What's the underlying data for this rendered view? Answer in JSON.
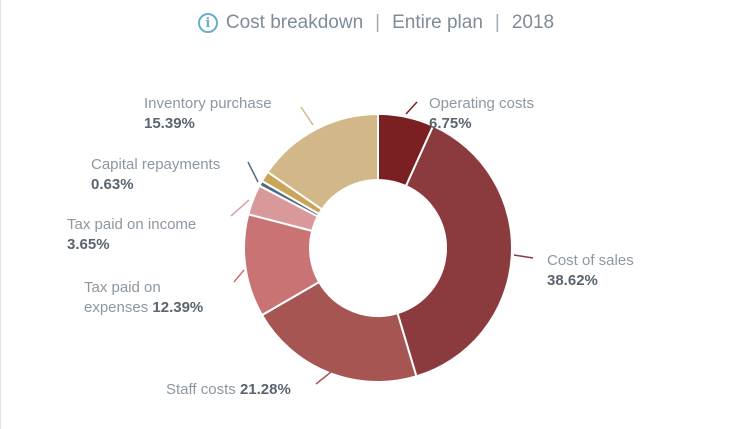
{
  "title": {
    "main": "Cost breakdown",
    "scope": "Entire plan",
    "year": "2018"
  },
  "icons": {
    "info": "info-icon"
  },
  "chart_data": {
    "type": "pie",
    "variant": "donut",
    "title": "Cost breakdown | Entire plan | 2018",
    "slices": [
      {
        "label": "Operating costs",
        "value": 6.75,
        "display": "6.75%",
        "color": "#7a1f22"
      },
      {
        "label": "Cost of sales",
        "value": 38.62,
        "display": "38.62%",
        "color": "#8b3a3d"
      },
      {
        "label": "Staff costs",
        "value": 21.28,
        "display": "21.28%",
        "color": "#a65553"
      },
      {
        "label": "Tax paid on expenses",
        "value": 12.39,
        "display": "12.39%",
        "color": "#c97375"
      },
      {
        "label": "Tax paid on income",
        "value": 3.65,
        "display": "3.65%",
        "color": "#d9999a"
      },
      {
        "label": "Capital repayments",
        "value": 0.63,
        "display": "0.63%",
        "color": "#4e6b82"
      },
      {
        "label": "Inventory purchase",
        "value": 1.28,
        "display": "",
        "color": "#c9a45a"
      },
      {
        "label": "Inventory purchase",
        "value": 15.39,
        "display": "15.39%",
        "color": "#d2b888"
      }
    ],
    "labels": {
      "operating": {
        "name": "Operating costs",
        "pct": "6.75%"
      },
      "cost_of_sales": {
        "name": "Cost of sales",
        "pct": "38.62%"
      },
      "staff": {
        "name": "Staff costs",
        "pct": "21.28%"
      },
      "tax_expenses_line1": "Tax paid on",
      "tax_expenses_line2": "expenses",
      "tax_expenses_pct": "12.39%",
      "tax_income": {
        "name": "Tax paid on income",
        "pct": "3.65%"
      },
      "capital": {
        "name": "Capital repayments",
        "pct": "0.63%"
      },
      "inventory": {
        "name": "Inventory purchase",
        "pct": "15.39%"
      }
    },
    "legend": "none"
  }
}
